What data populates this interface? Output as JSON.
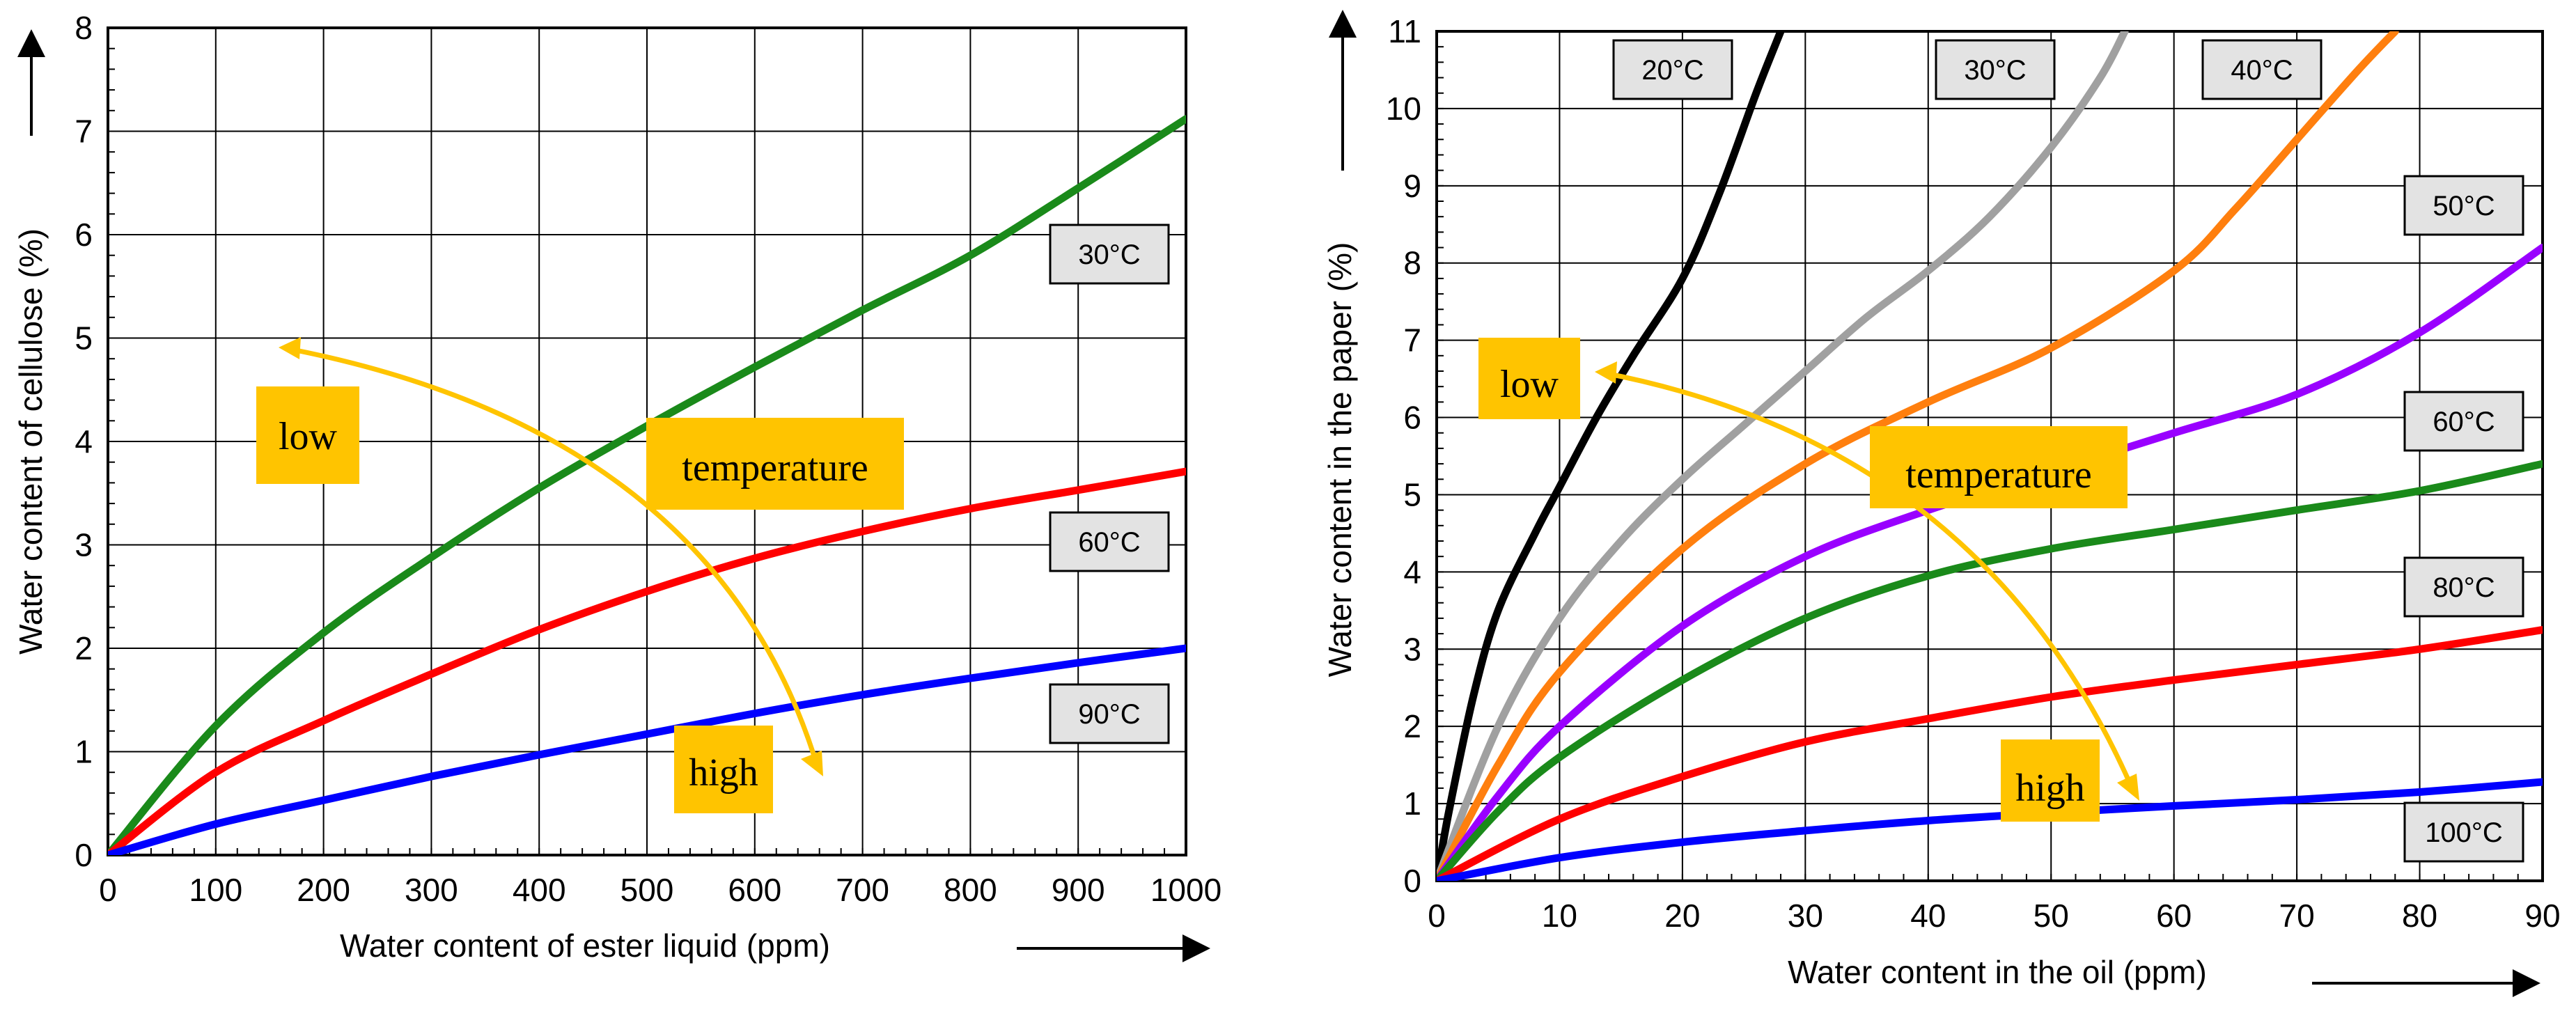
{
  "chart_data": [
    {
      "type": "line",
      "xlabel": "Water content of ester liquid (ppm)",
      "ylabel": "Water content of cellulose (%)",
      "xlim": [
        0,
        1000
      ],
      "ylim": [
        0,
        8
      ],
      "x_ticks": [
        0,
        100,
        200,
        300,
        400,
        500,
        600,
        700,
        800,
        900,
        1000
      ],
      "y_ticks": [
        0,
        1,
        2,
        3,
        4,
        5,
        6,
        7,
        8
      ],
      "grid": true,
      "series": [
        {
          "name": "30°C",
          "color": "#1a8a1a",
          "x": [
            0,
            100,
            200,
            300,
            400,
            500,
            600,
            700,
            800,
            900,
            1000
          ],
          "y": [
            0,
            1.25,
            2.15,
            2.88,
            3.55,
            4.15,
            4.72,
            5.27,
            5.8,
            6.45,
            7.12
          ]
        },
        {
          "name": "60°C",
          "color": "#ff0000",
          "x": [
            0,
            100,
            200,
            300,
            400,
            500,
            600,
            700,
            800,
            900,
            1000
          ],
          "y": [
            0,
            0.8,
            1.3,
            1.75,
            2.18,
            2.55,
            2.87,
            3.13,
            3.35,
            3.53,
            3.71
          ]
        },
        {
          "name": "90°C",
          "color": "#0000ff",
          "x": [
            0,
            100,
            200,
            300,
            400,
            500,
            600,
            700,
            800,
            900,
            1000
          ],
          "y": [
            0,
            0.3,
            0.53,
            0.76,
            0.97,
            1.17,
            1.37,
            1.55,
            1.71,
            1.86,
            2.0
          ]
        }
      ],
      "annotations": {
        "low": "low",
        "temperature": "temperature",
        "high": "high"
      }
    },
    {
      "type": "line",
      "xlabel": "Water content in the oil (ppm)",
      "ylabel": "Water content in the paper (%)",
      "xlim": [
        0,
        90
      ],
      "ylim": [
        0,
        11
      ],
      "x_ticks": [
        0,
        10,
        20,
        30,
        40,
        50,
        60,
        70,
        80,
        90
      ],
      "y_ticks": [
        0,
        1,
        2,
        3,
        4,
        5,
        6,
        7,
        8,
        9,
        10,
        11
      ],
      "grid": true,
      "series": [
        {
          "name": "20°C",
          "color": "#000000",
          "x": [
            0,
            1,
            3,
            5,
            8,
            10,
            13,
            16,
            20,
            23,
            26,
            28
          ],
          "y": [
            0,
            0.9,
            2.4,
            3.5,
            4.5,
            5.1,
            6.0,
            6.8,
            7.8,
            8.9,
            10.2,
            11.0
          ]
        },
        {
          "name": "30°C",
          "color": "#a0a0a0",
          "x": [
            0,
            5,
            10,
            15,
            20,
            25,
            30,
            35,
            40,
            45,
            50,
            54,
            56
          ],
          "y": [
            0,
            2.0,
            3.4,
            4.4,
            5.2,
            5.9,
            6.6,
            7.3,
            7.9,
            8.6,
            9.5,
            10.4,
            11.0
          ]
        },
        {
          "name": "40°C",
          "color": "#ff7f0e",
          "x": [
            0,
            5,
            10,
            20,
            30,
            40,
            50,
            60,
            65,
            70,
            75,
            78
          ],
          "y": [
            0,
            1.5,
            2.7,
            4.3,
            5.4,
            6.2,
            6.9,
            7.9,
            8.7,
            9.6,
            10.5,
            11.0
          ]
        },
        {
          "name": "50°C",
          "color": "#9900ff",
          "x": [
            0,
            5,
            10,
            20,
            30,
            40,
            50,
            60,
            70,
            80,
            90
          ],
          "y": [
            0,
            1.1,
            2.0,
            3.3,
            4.2,
            4.8,
            5.3,
            5.8,
            6.3,
            7.1,
            8.2
          ]
        },
        {
          "name": "60°C",
          "color": "#1a8a1a",
          "x": [
            0,
            5,
            10,
            20,
            30,
            40,
            50,
            60,
            70,
            80,
            90
          ],
          "y": [
            0,
            0.9,
            1.6,
            2.6,
            3.4,
            3.95,
            4.3,
            4.55,
            4.8,
            5.05,
            5.4
          ]
        },
        {
          "name": "80°C",
          "color": "#ff0000",
          "x": [
            0,
            10,
            20,
            30,
            40,
            50,
            60,
            70,
            80,
            90
          ],
          "y": [
            0,
            0.8,
            1.35,
            1.8,
            2.1,
            2.38,
            2.6,
            2.8,
            3.0,
            3.25
          ]
        },
        {
          "name": "100°C",
          "color": "#0000ff",
          "x": [
            0,
            10,
            20,
            30,
            40,
            50,
            60,
            70,
            80,
            90
          ],
          "y": [
            0,
            0.3,
            0.5,
            0.65,
            0.78,
            0.88,
            0.97,
            1.05,
            1.15,
            1.28
          ]
        }
      ],
      "annotations": {
        "low": "low",
        "temperature": "temperature",
        "high": "high"
      }
    }
  ]
}
